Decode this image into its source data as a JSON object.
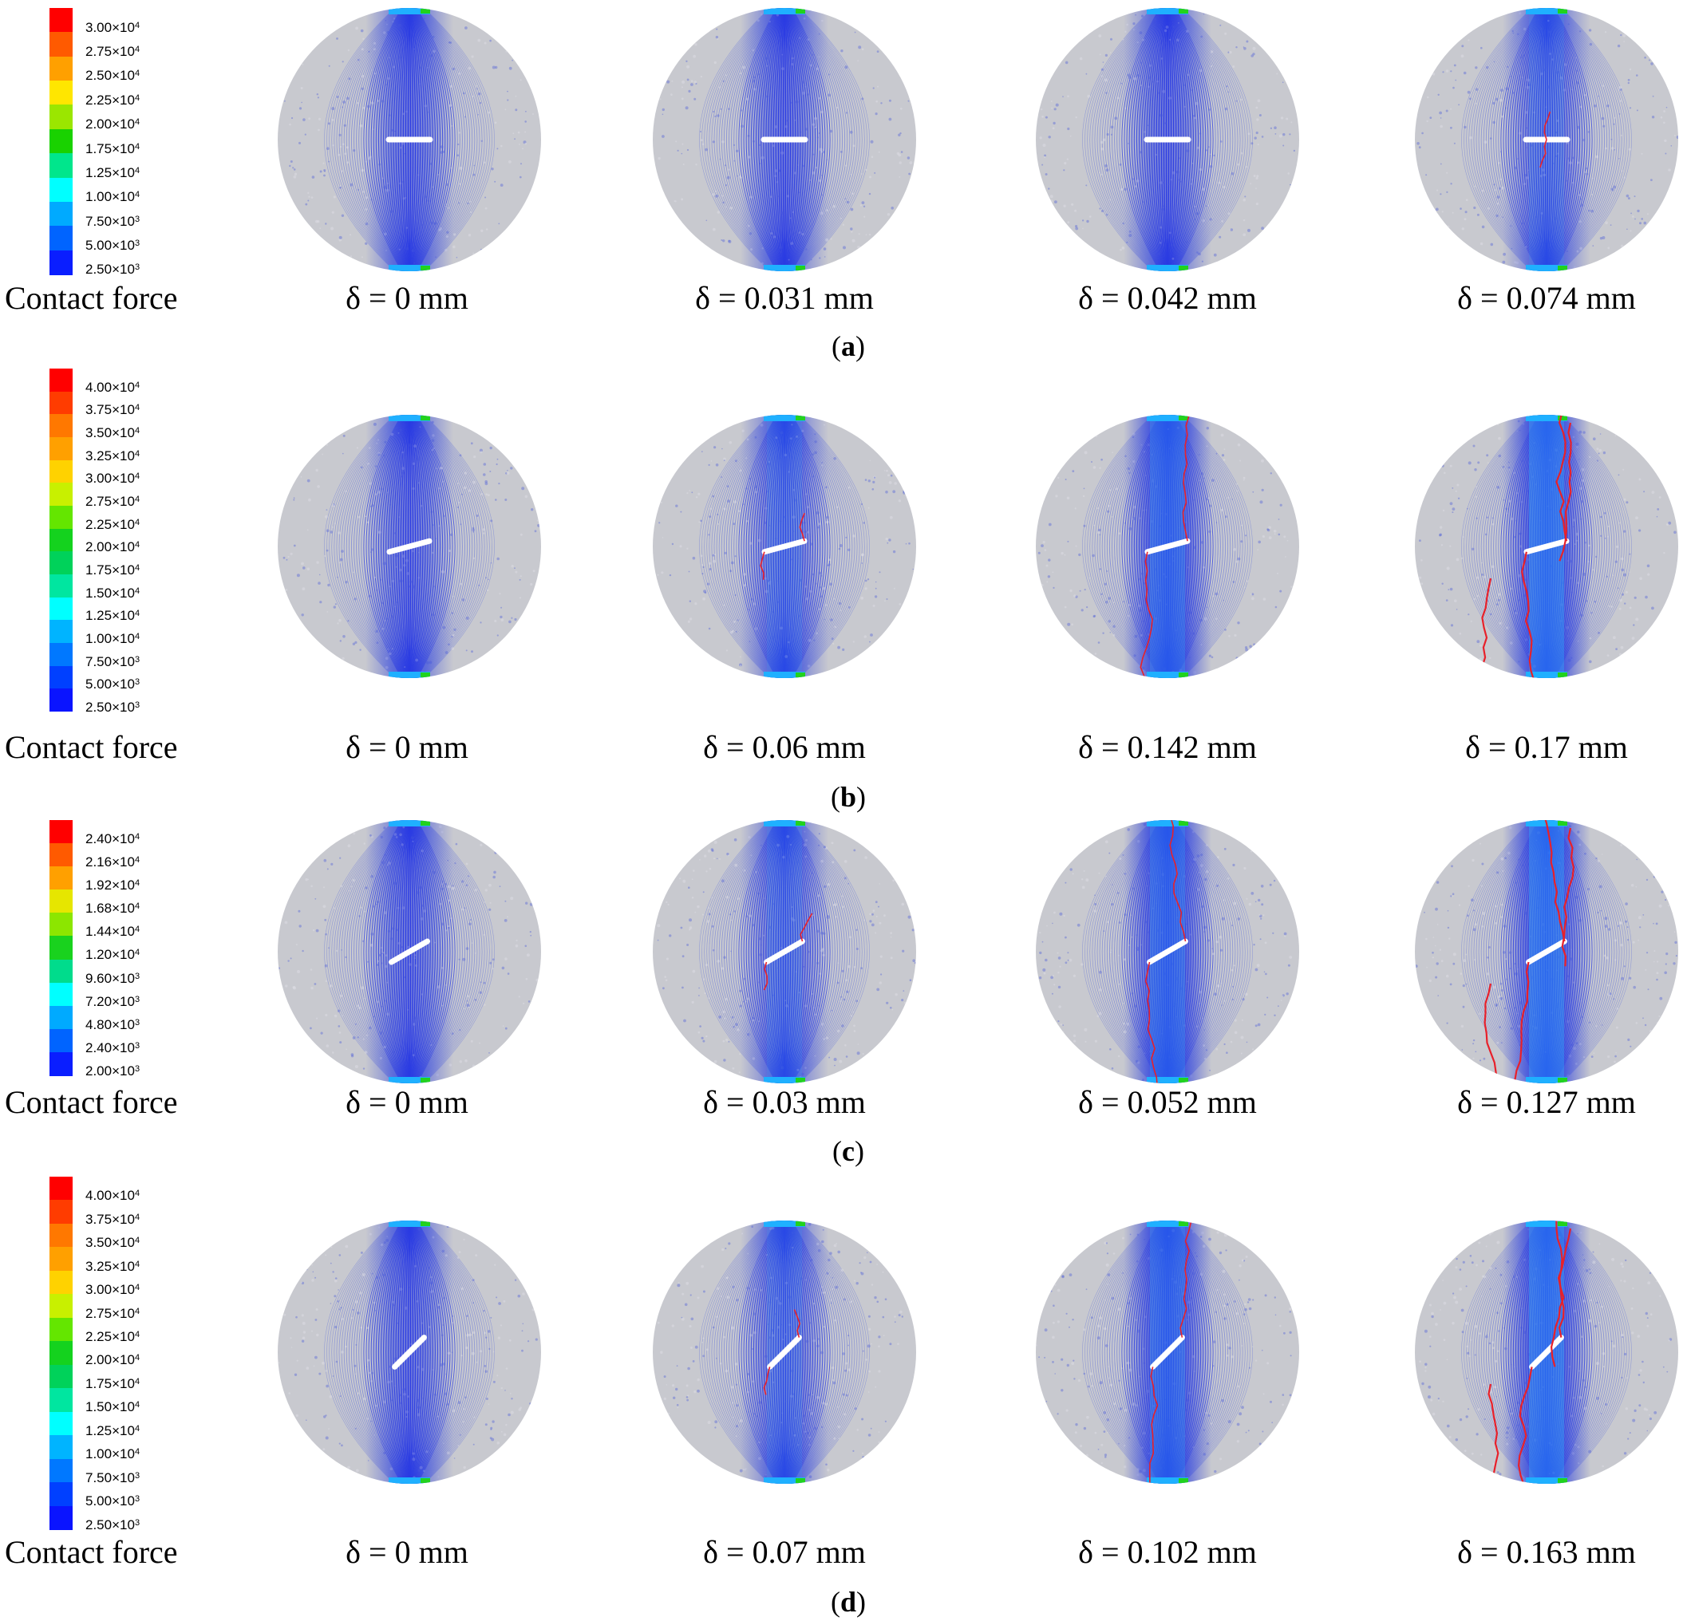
{
  "figure": {
    "rows": [
      {
        "panel": "a",
        "legend_label": "Contact force",
        "legend_values": [
          "3.00×10",
          "2.75×10",
          "2.50×10",
          "2.25×10",
          "2.00×10",
          "1.75×10",
          "1.25×10",
          "1.00×10",
          "7.50×10",
          "5.00×10",
          "2.50×10"
        ],
        "legend_exponents": [
          "4",
          "4",
          "4",
          "4",
          "4",
          "4",
          "4",
          "4",
          "3",
          "3",
          "3"
        ],
        "colors": [
          "#ff0000",
          "#ff5a00",
          "#ffa000",
          "#ffe600",
          "#9be600",
          "#19d200",
          "#00e68c",
          "#00ffff",
          "#00aaff",
          "#0064ff",
          "#0a1eff"
        ],
        "captions": [
          "δ = 0 mm",
          "δ = 0.031 mm",
          "δ = 0.042 mm",
          "δ = 0.074 mm"
        ],
        "flaw_angle_deg": 0,
        "crack_stage": [
          0,
          0,
          0,
          1
        ]
      },
      {
        "panel": "b",
        "legend_label": "Contact force",
        "legend_values": [
          "4.00×10",
          "3.75×10",
          "3.50×10",
          "3.25×10",
          "3.00×10",
          "2.75×10",
          "2.25×10",
          "2.00×10",
          "1.75×10",
          "1.50×10",
          "1.25×10",
          "1.00×10",
          "7.50×10",
          "5.00×10",
          "2.50×10"
        ],
        "legend_exponents": [
          "4",
          "4",
          "4",
          "4",
          "4",
          "4",
          "4",
          "4",
          "4",
          "4",
          "4",
          "4",
          "3",
          "3",
          "3"
        ],
        "colors": [
          "#ff0000",
          "#ff3c00",
          "#ff7800",
          "#ffa000",
          "#ffd200",
          "#c8f000",
          "#64e600",
          "#14d21e",
          "#00d25a",
          "#00e6a0",
          "#00ffff",
          "#00b4ff",
          "#0078ff",
          "#0040ff",
          "#0a14ff"
        ],
        "captions": [
          "δ = 0 mm",
          "δ = 0.06 mm",
          "δ = 0.142 mm",
          "δ = 0.17 mm"
        ],
        "flaw_angle_deg": 15,
        "crack_stage": [
          0,
          1,
          2,
          3
        ]
      },
      {
        "panel": "c",
        "legend_label": "Contact force",
        "legend_values": [
          "2.40×10",
          "2.16×10",
          "1.92×10",
          "1.68×10",
          "1.44×10",
          "1.20×10",
          "9.60×10",
          "7.20×10",
          "4.80×10",
          "2.40×10",
          "2.00×10"
        ],
        "legend_exponents": [
          "4",
          "4",
          "4",
          "4",
          "4",
          "4",
          "3",
          "3",
          "3",
          "3",
          "3"
        ],
        "colors": [
          "#ff0000",
          "#ff5a00",
          "#ffa000",
          "#e6e600",
          "#8ce600",
          "#19d21e",
          "#00dc8c",
          "#00ffff",
          "#00aaff",
          "#0064ff",
          "#0a1eff"
        ],
        "captions": [
          "δ = 0 mm",
          "δ = 0.03 mm",
          "δ = 0.052 mm",
          "δ = 0.127 mm"
        ],
        "flaw_angle_deg": 30,
        "crack_stage": [
          0,
          1,
          2,
          3
        ]
      },
      {
        "panel": "d",
        "legend_label": "Contact force",
        "legend_values": [
          "4.00×10",
          "3.75×10",
          "3.50×10",
          "3.25×10",
          "3.00×10",
          "2.75×10",
          "2.25×10",
          "2.00×10",
          "1.75×10",
          "1.50×10",
          "1.25×10",
          "1.00×10",
          "7.50×10",
          "5.00×10",
          "2.50×10"
        ],
        "legend_exponents": [
          "4",
          "4",
          "4",
          "4",
          "4",
          "4",
          "4",
          "4",
          "4",
          "4",
          "4",
          "4",
          "3",
          "3",
          "3"
        ],
        "colors": [
          "#ff0000",
          "#ff3c00",
          "#ff7800",
          "#ffa000",
          "#ffd200",
          "#c8f000",
          "#64e600",
          "#14d21e",
          "#00d25a",
          "#00e6a0",
          "#00ffff",
          "#00b4ff",
          "#0078ff",
          "#0040ff",
          "#0a14ff"
        ],
        "captions": [
          "δ = 0 mm",
          "δ = 0.07 mm",
          "δ = 0.102 mm",
          "δ = 0.163 mm"
        ],
        "flaw_angle_deg": 45,
        "crack_stage": [
          0,
          1,
          2,
          3
        ]
      }
    ]
  }
}
